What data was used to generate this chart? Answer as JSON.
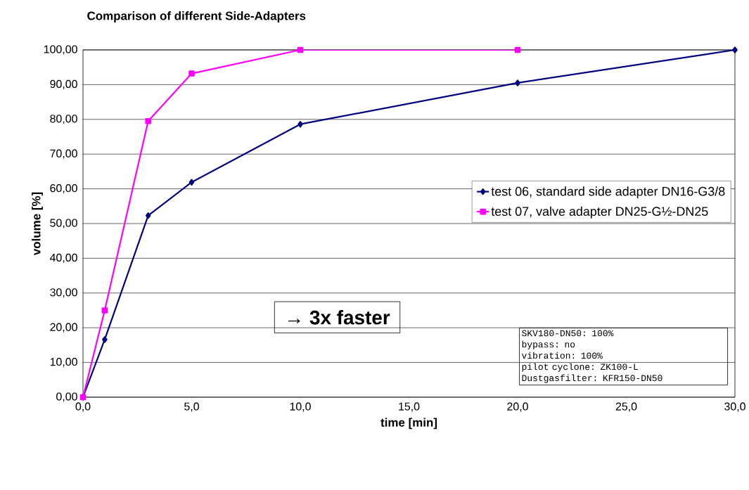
{
  "chart_data": {
    "type": "line",
    "title": "Comparison of different Side-Adapters",
    "xlabel": "time [min]",
    "ylabel": "volume [%]",
    "xlim": [
      0,
      30
    ],
    "ylim": [
      0,
      100
    ],
    "xticks": [
      {
        "value": 0,
        "label": "0,0"
      },
      {
        "value": 5,
        "label": "5,0"
      },
      {
        "value": 10,
        "label": "10,0"
      },
      {
        "value": 15,
        "label": "15,0"
      },
      {
        "value": 20,
        "label": "20,0"
      },
      {
        "value": 25,
        "label": "25,0"
      },
      {
        "value": 30,
        "label": "30,0"
      }
    ],
    "yticks": [
      {
        "value": 0,
        "label": "0,00"
      },
      {
        "value": 10,
        "label": "10,00"
      },
      {
        "value": 20,
        "label": "20,00"
      },
      {
        "value": 30,
        "label": "30,00"
      },
      {
        "value": 40,
        "label": "40,00"
      },
      {
        "value": 50,
        "label": "50,00"
      },
      {
        "value": 60,
        "label": "60,00"
      },
      {
        "value": 70,
        "label": "70,00"
      },
      {
        "value": 80,
        "label": "80,00"
      },
      {
        "value": 90,
        "label": "90,00"
      },
      {
        "value": 100,
        "label": "100,00"
      }
    ],
    "grid": "y",
    "legend": "right",
    "line_style": "solid",
    "series": [
      {
        "name": "test 06, standard side adapter DN16-G3/8",
        "color": "#000080",
        "marker": "diamond",
        "x": [
          0,
          1,
          3,
          5,
          10,
          20,
          30
        ],
        "values": [
          0,
          16.6,
          52.3,
          61.9,
          78.6,
          90.5,
          100
        ]
      },
      {
        "name": "test 07, valve adapter DN25-G½-DN25",
        "color": "#ff00ff",
        "marker": "square",
        "x": [
          0,
          1,
          3,
          5,
          10,
          20
        ],
        "values": [
          0,
          25.0,
          79.5,
          93.2,
          100,
          100
        ]
      }
    ],
    "annotations": [
      "→ 3x faster",
      "SKV180-DN50: 100%",
      "bypass: no",
      "vibration: 100%",
      "pilot cyclone: ZK100-L",
      "Dustgasfilter: KFR150-DN50"
    ]
  }
}
